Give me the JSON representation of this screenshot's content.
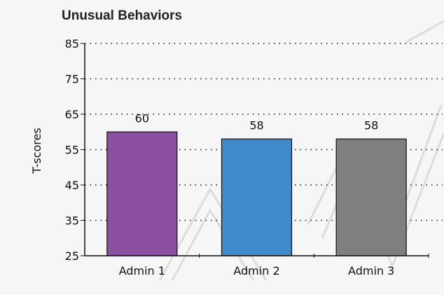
{
  "chart_data": {
    "type": "bar",
    "title": "Unusual Behaviors",
    "xlabel": "",
    "ylabel": "T-scores",
    "categories": [
      "Admin 1",
      "Admin 2",
      "Admin 3"
    ],
    "values": [
      60,
      58,
      58
    ],
    "data_labels": [
      "60",
      "58",
      "58"
    ],
    "colors": [
      "#8a4f9e",
      "#3f8acb",
      "#7f7f7f"
    ],
    "ylim": [
      25,
      85
    ],
    "yticks": [
      25,
      35,
      45,
      55,
      65,
      75,
      85
    ],
    "grid": "dotted horizontal",
    "legend": "none"
  },
  "colors": {
    "background": "#f6f6f6",
    "axis": "#111111",
    "grid": "#111111",
    "watermark": "#d8d8d8"
  }
}
